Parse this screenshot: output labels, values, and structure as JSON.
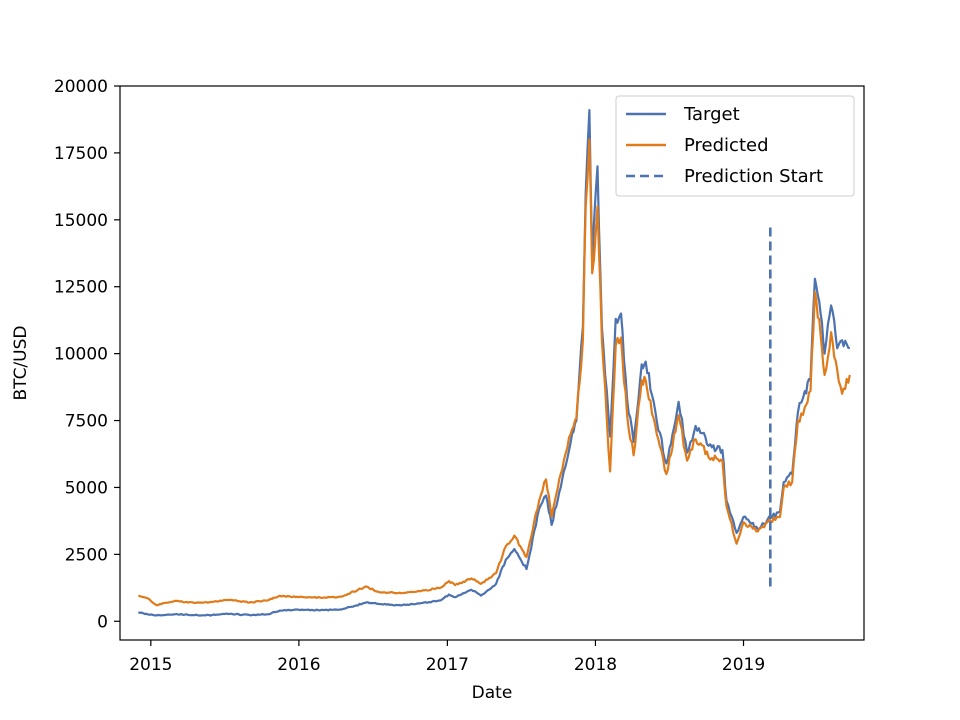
{
  "chart_data": {
    "type": "line",
    "xlabel": "Date",
    "ylabel": "BTC/USD",
    "x_ticks": [
      "2015",
      "2016",
      "2017",
      "2018",
      "2019"
    ],
    "xlim": [
      "2014-10-17",
      "2019-10-25"
    ],
    "y_ticks": [
      0,
      2500,
      5000,
      7500,
      10000,
      12500,
      15000,
      17500,
      20000
    ],
    "ylim": [
      -700,
      20000
    ],
    "grid": false,
    "legend": {
      "placement": "top-right"
    },
    "series": [
      {
        "name": "Target",
        "color": "#4c72b0",
        "style": "solid",
        "points": [
          [
            "2014-12-01",
            330
          ],
          [
            "2015-01-15",
            220
          ],
          [
            "2015-03-01",
            260
          ],
          [
            "2015-04-15",
            230
          ],
          [
            "2015-06-01",
            230
          ],
          [
            "2015-07-15",
            280
          ],
          [
            "2015-09-01",
            230
          ],
          [
            "2015-10-15",
            260
          ],
          [
            "2015-11-15",
            400
          ],
          [
            "2016-01-01",
            430
          ],
          [
            "2016-03-01",
            420
          ],
          [
            "2016-04-15",
            440
          ],
          [
            "2016-06-15",
            700
          ],
          [
            "2016-07-15",
            650
          ],
          [
            "2016-09-01",
            600
          ],
          [
            "2016-10-15",
            640
          ],
          [
            "2016-12-15",
            780
          ],
          [
            "2017-01-05",
            1000
          ],
          [
            "2017-01-20",
            900
          ],
          [
            "2017-03-01",
            1180
          ],
          [
            "2017-03-25",
            960
          ],
          [
            "2017-05-01",
            1400
          ],
          [
            "2017-05-25",
            2300
          ],
          [
            "2017-06-15",
            2700
          ],
          [
            "2017-07-15",
            1950
          ],
          [
            "2017-08-15",
            4200
          ],
          [
            "2017-09-01",
            4700
          ],
          [
            "2017-09-15",
            3600
          ],
          [
            "2017-10-15",
            5600
          ],
          [
            "2017-11-01",
            6700
          ],
          [
            "2017-11-15",
            7500
          ],
          [
            "2017-12-01",
            11000
          ],
          [
            "2017-12-08",
            16000
          ],
          [
            "2017-12-17",
            19100
          ],
          [
            "2017-12-24",
            13500
          ],
          [
            "2018-01-06",
            17000
          ],
          [
            "2018-01-17",
            11000
          ],
          [
            "2018-02-06",
            6900
          ],
          [
            "2018-02-20",
            11300
          ],
          [
            "2018-03-05",
            11500
          ],
          [
            "2018-03-20",
            8300
          ],
          [
            "2018-04-05",
            6700
          ],
          [
            "2018-04-25",
            9600
          ],
          [
            "2018-05-05",
            9700
          ],
          [
            "2018-06-01",
            7500
          ],
          [
            "2018-06-25",
            5900
          ],
          [
            "2018-07-25",
            8200
          ],
          [
            "2018-08-15",
            6300
          ],
          [
            "2018-09-05",
            7300
          ],
          [
            "2018-10-15",
            6500
          ],
          [
            "2018-11-10",
            6400
          ],
          [
            "2018-11-20",
            4500
          ],
          [
            "2018-12-15",
            3300
          ],
          [
            "2019-01-01",
            3900
          ],
          [
            "2019-02-05",
            3450
          ],
          [
            "2019-03-01",
            3800
          ],
          [
            "2019-04-01",
            4100
          ],
          [
            "2019-04-10",
            5200
          ],
          [
            "2019-05-01",
            5500
          ],
          [
            "2019-05-15",
            7800
          ],
          [
            "2019-06-01",
            8600
          ],
          [
            "2019-06-15",
            9000
          ],
          [
            "2019-06-26",
            12800
          ],
          [
            "2019-07-10",
            11500
          ],
          [
            "2019-07-20",
            10000
          ],
          [
            "2019-08-05",
            11800
          ],
          [
            "2019-08-20",
            10200
          ],
          [
            "2019-09-01",
            10500
          ],
          [
            "2019-09-20",
            10200
          ]
        ]
      },
      {
        "name": "Predicted",
        "color": "#e07b1c",
        "style": "solid",
        "points": [
          [
            "2014-12-01",
            950
          ],
          [
            "2014-12-25",
            850
          ],
          [
            "2015-01-15",
            600
          ],
          [
            "2015-03-01",
            760
          ],
          [
            "2015-04-15",
            700
          ],
          [
            "2015-06-01",
            720
          ],
          [
            "2015-07-15",
            800
          ],
          [
            "2015-09-01",
            700
          ],
          [
            "2015-10-15",
            780
          ],
          [
            "2015-11-15",
            950
          ],
          [
            "2016-01-01",
            900
          ],
          [
            "2016-03-01",
            880
          ],
          [
            "2016-04-15",
            920
          ],
          [
            "2016-06-15",
            1300
          ],
          [
            "2016-07-15",
            1100
          ],
          [
            "2016-09-01",
            1050
          ],
          [
            "2016-10-15",
            1100
          ],
          [
            "2016-12-15",
            1250
          ],
          [
            "2017-01-05",
            1500
          ],
          [
            "2017-01-20",
            1350
          ],
          [
            "2017-03-01",
            1600
          ],
          [
            "2017-03-25",
            1400
          ],
          [
            "2017-05-01",
            1800
          ],
          [
            "2017-05-25",
            2800
          ],
          [
            "2017-06-15",
            3200
          ],
          [
            "2017-07-15",
            2400
          ],
          [
            "2017-08-15",
            4500
          ],
          [
            "2017-09-01",
            5300
          ],
          [
            "2017-09-15",
            3900
          ],
          [
            "2017-10-15",
            6000
          ],
          [
            "2017-11-01",
            7000
          ],
          [
            "2017-11-15",
            7600
          ],
          [
            "2017-12-01",
            10500
          ],
          [
            "2017-12-08",
            15500
          ],
          [
            "2017-12-17",
            18000
          ],
          [
            "2017-12-24",
            13000
          ],
          [
            "2018-01-06",
            15500
          ],
          [
            "2018-01-17",
            10500
          ],
          [
            "2018-02-06",
            5600
          ],
          [
            "2018-02-20",
            10300
          ],
          [
            "2018-03-05",
            10600
          ],
          [
            "2018-03-20",
            7700
          ],
          [
            "2018-04-05",
            6200
          ],
          [
            "2018-04-25",
            9000
          ],
          [
            "2018-05-05",
            9000
          ],
          [
            "2018-06-01",
            7000
          ],
          [
            "2018-06-25",
            5500
          ],
          [
            "2018-07-25",
            7700
          ],
          [
            "2018-08-15",
            6000
          ],
          [
            "2018-09-05",
            6800
          ],
          [
            "2018-10-15",
            6100
          ],
          [
            "2018-11-10",
            6000
          ],
          [
            "2018-11-20",
            4300
          ],
          [
            "2018-12-15",
            2900
          ],
          [
            "2019-01-01",
            3700
          ],
          [
            "2019-02-05",
            3350
          ],
          [
            "2019-03-01",
            3700
          ],
          [
            "2019-04-01",
            3900
          ],
          [
            "2019-04-10",
            5000
          ],
          [
            "2019-05-01",
            5200
          ],
          [
            "2019-05-15",
            7500
          ],
          [
            "2019-06-01",
            8000
          ],
          [
            "2019-06-15",
            8600
          ],
          [
            "2019-06-26",
            12300
          ],
          [
            "2019-07-10",
            10700
          ],
          [
            "2019-07-20",
            9200
          ],
          [
            "2019-08-05",
            10800
          ],
          [
            "2019-08-20",
            9400
          ],
          [
            "2019-09-01",
            8500
          ],
          [
            "2019-09-20",
            9200
          ]
        ]
      },
      {
        "name": "Prediction Start",
        "color": "#4c72b0",
        "style": "dashed",
        "points": [
          [
            "2019-03-08",
            1300
          ],
          [
            "2019-03-08",
            14800
          ]
        ]
      }
    ]
  }
}
